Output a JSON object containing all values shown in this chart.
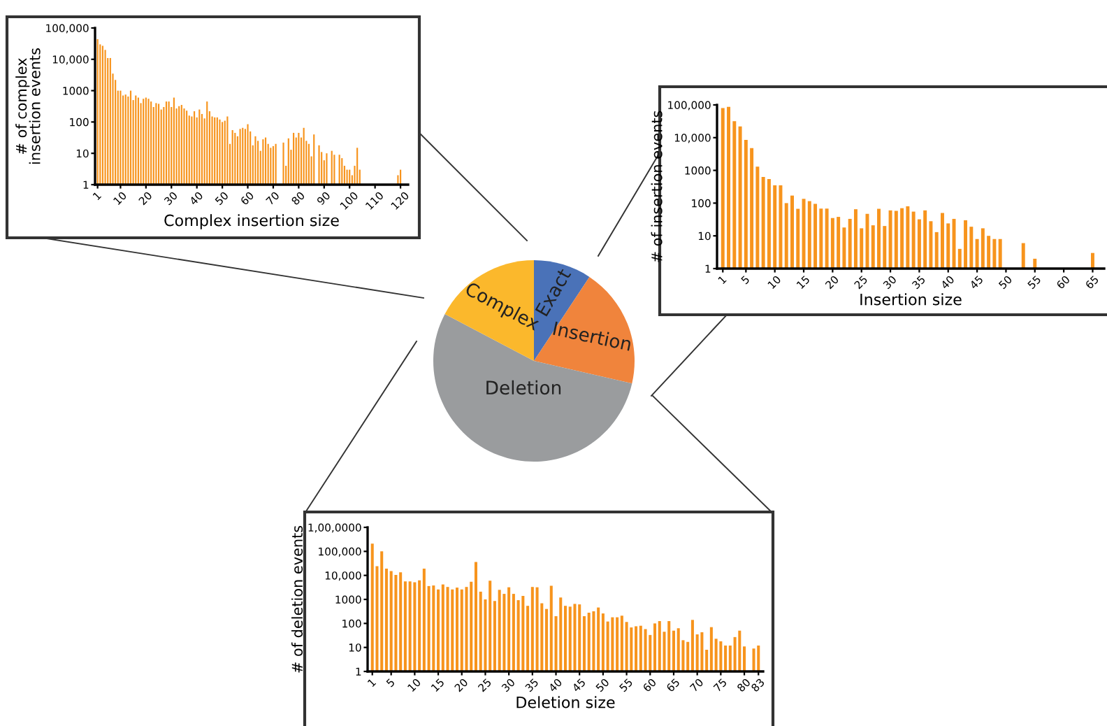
{
  "chart_data": [
    {
      "type": "pie",
      "categories": [
        "Exact",
        "Insertion",
        "Deletion",
        "Complex"
      ],
      "values": [
        9.3,
        19.3,
        54.1,
        17.3
      ],
      "colors": [
        "#4a72b8",
        "#f0843c",
        "#9a9c9e",
        "#fbb82c"
      ]
    },
    {
      "type": "bar",
      "xlabel": "Complex insertion size",
      "ylabel": "# of complex\ninsertion events",
      "color": "#f7941d",
      "log": true,
      "x": [
        1,
        2,
        3,
        4,
        5,
        6,
        7,
        8,
        9,
        10,
        11,
        12,
        13,
        14,
        15,
        16,
        17,
        18,
        19,
        20,
        21,
        22,
        23,
        24,
        25,
        26,
        27,
        28,
        29,
        30,
        31,
        32,
        33,
        34,
        35,
        36,
        37,
        38,
        39,
        40,
        41,
        42,
        43,
        44,
        45,
        46,
        47,
        48,
        49,
        50,
        51,
        52,
        53,
        54,
        55,
        56,
        57,
        58,
        59,
        60,
        61,
        62,
        63,
        64,
        65,
        66,
        67,
        68,
        69,
        70,
        71,
        72,
        73,
        74,
        75,
        76,
        77,
        78,
        79,
        80,
        81,
        82,
        83,
        84,
        85,
        86,
        87,
        88,
        89,
        90,
        91,
        92,
        93,
        94,
        95,
        96,
        97,
        98,
        99,
        100,
        101,
        102,
        103,
        104,
        119,
        120
      ],
      "values": [
        44000,
        30000,
        27000,
        20000,
        11000,
        11000,
        3500,
        2200,
        1000,
        1000,
        700,
        750,
        650,
        1000,
        500,
        700,
        600,
        400,
        550,
        600,
        550,
        450,
        300,
        400,
        380,
        250,
        300,
        450,
        450,
        300,
        600,
        270,
        320,
        350,
        270,
        230,
        160,
        150,
        220,
        140,
        250,
        180,
        130,
        450,
        220,
        150,
        140,
        140,
        120,
        100,
        110,
        150,
        20,
        55,
        45,
        35,
        60,
        65,
        60,
        85,
        50,
        18,
        35,
        25,
        12,
        28,
        32,
        20,
        15,
        17,
        20,
        null,
        null,
        22,
        4,
        30,
        13,
        45,
        32,
        45,
        32,
        65,
        25,
        20,
        8,
        40,
        null,
        18,
        11,
        6,
        10,
        null,
        12,
        9,
        null,
        9,
        7,
        4,
        3,
        3,
        2,
        4,
        15,
        3,
        2,
        3
      ],
      "xlim": [
        0,
        123
      ],
      "xticks": [
        1,
        10,
        20,
        30,
        40,
        50,
        60,
        70,
        80,
        90,
        100,
        110,
        120
      ],
      "ylim": [
        1,
        100000
      ],
      "yticks": [
        1,
        10,
        100,
        1000,
        {
          "value": 10000,
          "label": "10,000"
        },
        {
          "value": 100000,
          "label": "100,000"
        }
      ]
    },
    {
      "type": "bar",
      "xlabel": "Insertion size",
      "ylabel": "# of insertion events",
      "color": "#f7941d",
      "log": true,
      "x": [
        1,
        2,
        3,
        4,
        5,
        6,
        7,
        8,
        9,
        10,
        11,
        12,
        13,
        14,
        15,
        16,
        17,
        18,
        19,
        20,
        21,
        22,
        23,
        24,
        25,
        26,
        27,
        28,
        29,
        30,
        31,
        32,
        33,
        34,
        35,
        36,
        37,
        38,
        39,
        40,
        41,
        42,
        43,
        44,
        45,
        46,
        47,
        48,
        49,
        53,
        55,
        65
      ],
      "values": [
        80000,
        87000,
        32000,
        22000,
        8500,
        4800,
        1300,
        630,
        540,
        350,
        350,
        100,
        170,
        67,
        135,
        115,
        95,
        68,
        68,
        35,
        38,
        18,
        33,
        65,
        17,
        47,
        21,
        67,
        20,
        60,
        58,
        70,
        80,
        55,
        32,
        60,
        28,
        13,
        50,
        24,
        33,
        4,
        30,
        19,
        8,
        17,
        10,
        8,
        8,
        6,
        2,
        3
      ],
      "xlim": [
        0,
        67
      ],
      "xticks": [
        1,
        5,
        10,
        15,
        20,
        25,
        30,
        35,
        40,
        45,
        50,
        55,
        60,
        65
      ],
      "ylim": [
        1,
        100000
      ],
      "yticks": [
        1,
        10,
        100,
        1000,
        {
          "value": 10000,
          "label": "10,000"
        },
        {
          "value": 100000,
          "label": "100,000"
        }
      ]
    },
    {
      "type": "bar",
      "xlabel": "Deletion size",
      "ylabel": "# of deletion events",
      "color": "#f7941d",
      "log": true,
      "x": [
        1,
        2,
        3,
        4,
        5,
        6,
        7,
        8,
        9,
        10,
        11,
        12,
        13,
        14,
        15,
        16,
        17,
        18,
        19,
        20,
        21,
        22,
        23,
        24,
        25,
        26,
        27,
        28,
        29,
        30,
        31,
        32,
        33,
        34,
        35,
        36,
        37,
        38,
        39,
        40,
        41,
        42,
        43,
        44,
        45,
        46,
        47,
        48,
        49,
        50,
        51,
        52,
        53,
        54,
        55,
        56,
        57,
        58,
        59,
        60,
        61,
        62,
        63,
        64,
        65,
        66,
        67,
        68,
        69,
        70,
        71,
        72,
        73,
        74,
        75,
        76,
        77,
        78,
        79,
        80,
        82,
        83
      ],
      "values": [
        210000,
        24000,
        100000,
        19000,
        15000,
        10500,
        13500,
        5600,
        5600,
        5200,
        6200,
        19000,
        3600,
        3800,
        2600,
        4200,
        3300,
        2600,
        3100,
        2600,
        3300,
        5400,
        36000,
        2100,
        1000,
        6000,
        860,
        2500,
        1700,
        3200,
        1700,
        930,
        1400,
        540,
        3300,
        3200,
        690,
        400,
        3700,
        200,
        1200,
        540,
        500,
        650,
        620,
        200,
        280,
        320,
        460,
        260,
        120,
        180,
        180,
        210,
        115,
        68,
        76,
        80,
        58,
        33,
        100,
        125,
        45,
        125,
        50,
        63,
        20,
        17,
        140,
        35,
        43,
        8,
        70,
        23,
        18,
        12,
        12,
        27,
        50,
        11,
        9,
        12
      ],
      "xlim": [
        0,
        84
      ],
      "xticks": [
        1,
        5,
        10,
        15,
        20,
        25,
        30,
        35,
        40,
        45,
        50,
        55,
        60,
        65,
        70,
        75,
        80,
        83
      ],
      "ylim": [
        1,
        1000000
      ],
      "yticks": [
        1,
        10,
        100,
        1000,
        {
          "value": 10000,
          "label": "10,000"
        },
        {
          "value": 100000,
          "label": "100,000"
        },
        {
          "value": 1000000,
          "label": "1,00,0000"
        }
      ]
    }
  ]
}
